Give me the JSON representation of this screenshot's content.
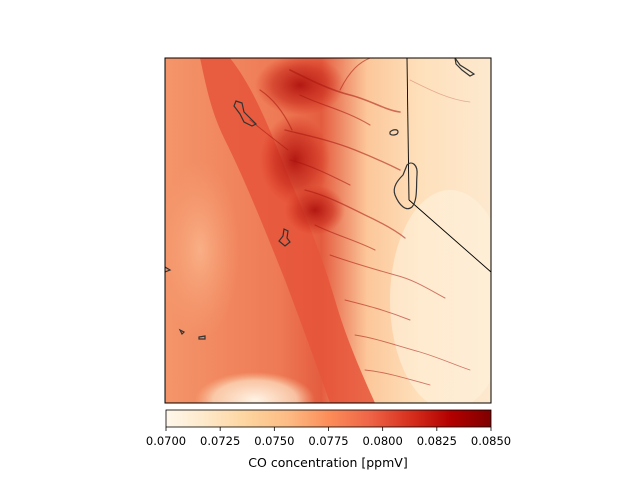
{
  "map": {
    "colormap": "OrRd",
    "colormap_stops": [
      "#fff7ec",
      "#fee8c8",
      "#fdd49e",
      "#fdbb84",
      "#fc8d59",
      "#ef6548",
      "#d7301f",
      "#b30000",
      "#7f0000"
    ],
    "boundary_color": "#000000",
    "lake_outline_color": "#333333"
  },
  "colorbar": {
    "label": "CO concentration [ppmV]",
    "vmin": 0.07,
    "vmax": 0.085,
    "ticks": [
      "0.0700",
      "0.0725",
      "0.0750",
      "0.0775",
      "0.0800",
      "0.0825",
      "0.0850"
    ],
    "tick_values": [
      0.07,
      0.0725,
      0.075,
      0.0775,
      0.08,
      0.0825,
      0.085
    ]
  }
}
